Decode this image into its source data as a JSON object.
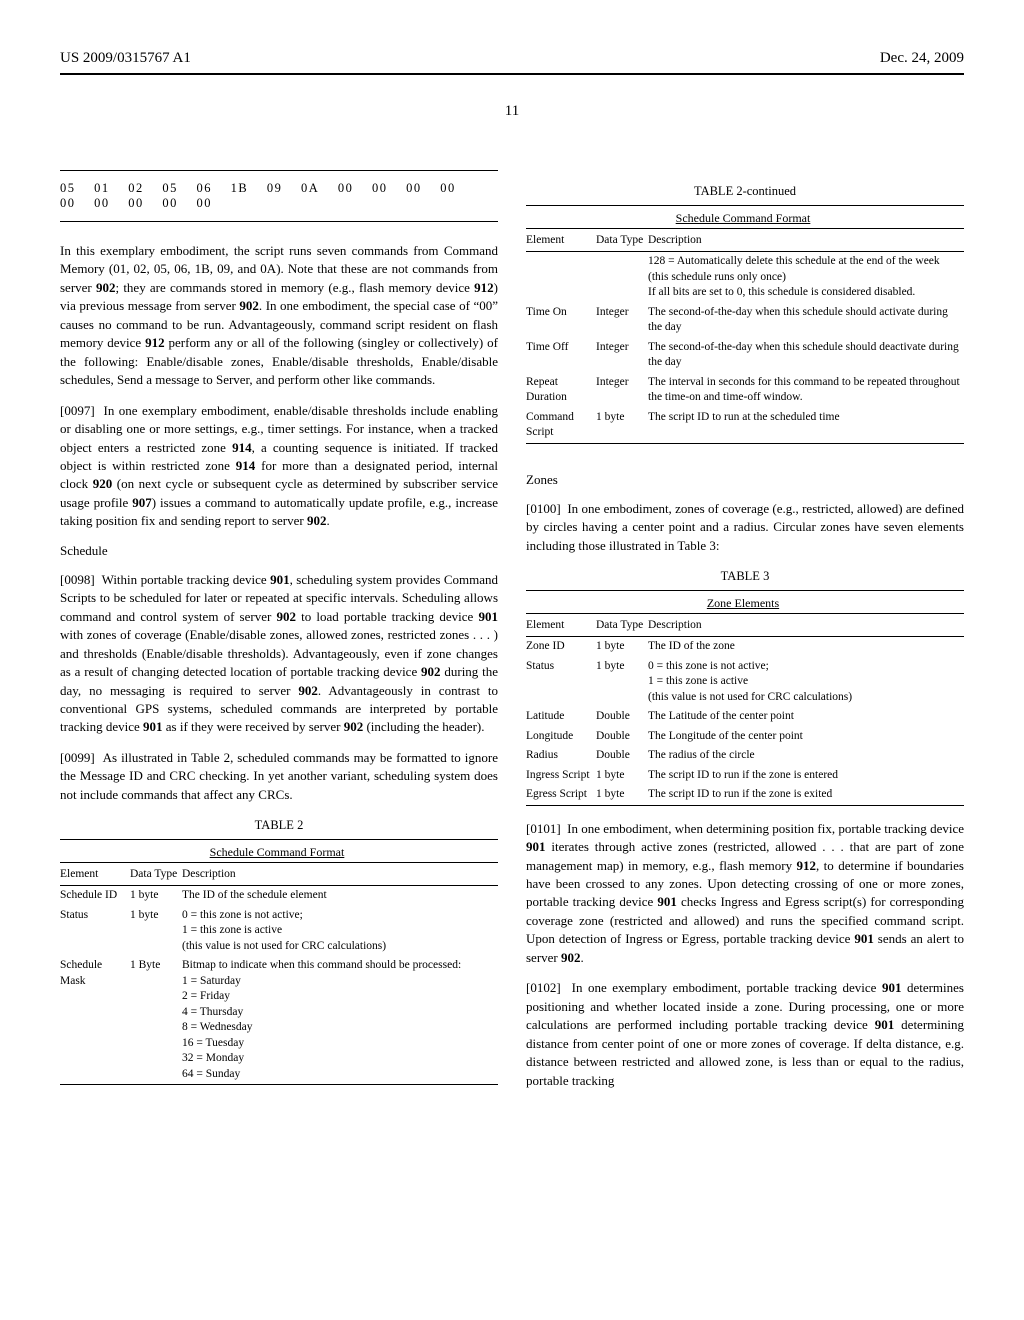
{
  "header": {
    "left": "US 2009/0315767 A1",
    "right": "Dec. 24, 2009"
  },
  "page_number": "11",
  "hex_row": "05  01  02  05  06  1B  09  0A  00  00  00  00  00  00  00  00  00",
  "left_col": {
    "intro": "In this exemplary embodiment, the script runs seven commands from Command Memory (01, 02, 05, 06, 1B, 09, and 0A). Note that these are not commands from server 902; they are commands stored in memory (e.g., flash memory device 912) via previous message from server 902. In one embodiment, the special case of “00” causes no command to be run. Advantageously, command script resident on flash memory device 912 perform any or all of the following (singley or collectively) of the following: Enable/disable zones, Enable/disable thresholds, Enable/disable schedules, Send a message to Server, and perform other like commands.",
    "p0097_tag": "[0097]",
    "p0097": "In one exemplary embodiment, enable/disable thresholds include enabling or disabling one or more settings, e.g., timer settings. For instance, when a tracked object enters a restricted zone 914, a counting sequence is initiated. If tracked object is within restricted zone 914 for more than a designated period, internal clock 920 (on next cycle or subsequent cycle as determined by subscriber service usage profile 907) issues a command to automatically update profile, e.g., increase taking position fix and sending report to server 902.",
    "schedule_heading": "Schedule",
    "p0098_tag": "[0098]",
    "p0098": "Within portable tracking device 901, scheduling system provides Command Scripts to be scheduled for later or repeated at specific intervals. Scheduling allows command and control system of server 902 to load portable tracking device 901 with zones of coverage (Enable/disable zones, allowed zones, restricted zones . . . ) and thresholds (Enable/disable thresholds). Advantageously, even if zone changes as a result of changing detected location of portable tracking device 902 during the day, no messaging is required to server 902. Advantageously in contrast to conventional GPS systems, scheduled commands are interpreted by portable tracking device 901 as if they were received by server 902 (including the header).",
    "p0099_tag": "[0099]",
    "p0099": "As illustrated in Table 2, scheduled commands may be formatted to ignore the Message ID and CRC checking. In yet another variant, scheduling system does not include commands that affect any CRCs."
  },
  "table2": {
    "title": "TABLE 2",
    "subtitle": "Schedule Command Format",
    "columns": [
      "Element",
      "Data Type",
      "Description"
    ],
    "rows_left": [
      [
        "Schedule ID",
        "1 byte",
        "The ID of the schedule element"
      ],
      [
        "Status",
        "1 byte",
        "0 = this zone is not active;\n1 = this zone is active\n(this value is not used for CRC calculations)"
      ],
      [
        "Schedule Mask",
        "1 Byte",
        "Bitmap to indicate when this command should be processed:\n1 = Saturday\n2 = Friday\n4 = Thursday\n8 = Wednesday\n16 = Tuesday\n32 = Monday\n64 = Sunday"
      ]
    ],
    "continued_title": "TABLE 2-continued",
    "rows_right": [
      [
        "",
        "",
        "128 = Automatically delete this schedule at the end of the week (this schedule runs only once)\nIf all bits are set to 0, this schedule is considered disabled."
      ],
      [
        "Time On",
        "Integer",
        "The second-of-the-day when this schedule should activate during the day"
      ],
      [
        "Time Off",
        "Integer",
        "The second-of-the-day when this schedule should deactivate during the day"
      ],
      [
        "Repeat Duration",
        "Integer",
        "The interval in seconds for this command to be repeated throughout the time-on and time-off window."
      ],
      [
        "Command Script",
        "1 byte",
        "The script ID to run at the scheduled time"
      ]
    ]
  },
  "right_col": {
    "zones_heading": "Zones",
    "p0100_tag": "[0100]",
    "p0100": "In one embodiment, zones of coverage (e.g., restricted, allowed) are defined by circles having a center point and a radius. Circular zones have seven elements including those illustrated in Table 3:",
    "p0101_tag": "[0101]",
    "p0101": "In one embodiment, when determining position fix, portable tracking device 901 iterates through active zones (restricted, allowed . . . that are part of zone management map) in memory, e.g., flash memory 912, to determine if boundaries have been crossed to any zones. Upon detecting crossing of one or more zones, portable tracking device 901 checks Ingress and Egress script(s) for corresponding coverage zone (restricted and allowed) and runs the specified command script. Upon detection of Ingress or Egress, portable tracking device 901 sends an alert to server 902.",
    "p0102_tag": "[0102]",
    "p0102": "In one exemplary embodiment, portable tracking device 901 determines positioning and whether located inside a zone. During processing, one or more calculations are performed including portable tracking device 901 determining distance from center point of one or more zones of coverage. If delta distance, e.g. distance between restricted and allowed zone, is less than or equal to the radius, portable tracking"
  },
  "table3": {
    "title": "TABLE 3",
    "subtitle": "Zone Elements",
    "columns": [
      "Element",
      "Data Type",
      "Description"
    ],
    "rows": [
      [
        "Zone ID",
        "1 byte",
        "The ID of the zone"
      ],
      [
        "Status",
        "1 byte",
        "0 = this zone is not active;\n1 = this zone is active\n(this value is not used for CRC calculations)"
      ],
      [
        "Latitude",
        "Double",
        "The Latitude of the center point"
      ],
      [
        "Longitude",
        "Double",
        "The Longitude of the center point"
      ],
      [
        "Radius",
        "Double",
        "The radius of the circle"
      ],
      [
        "Ingress Script",
        "1 byte",
        "The script ID to run if the zone is entered"
      ],
      [
        "Egress Script",
        "1 byte",
        "The script ID to run if the zone is exited"
      ]
    ]
  }
}
